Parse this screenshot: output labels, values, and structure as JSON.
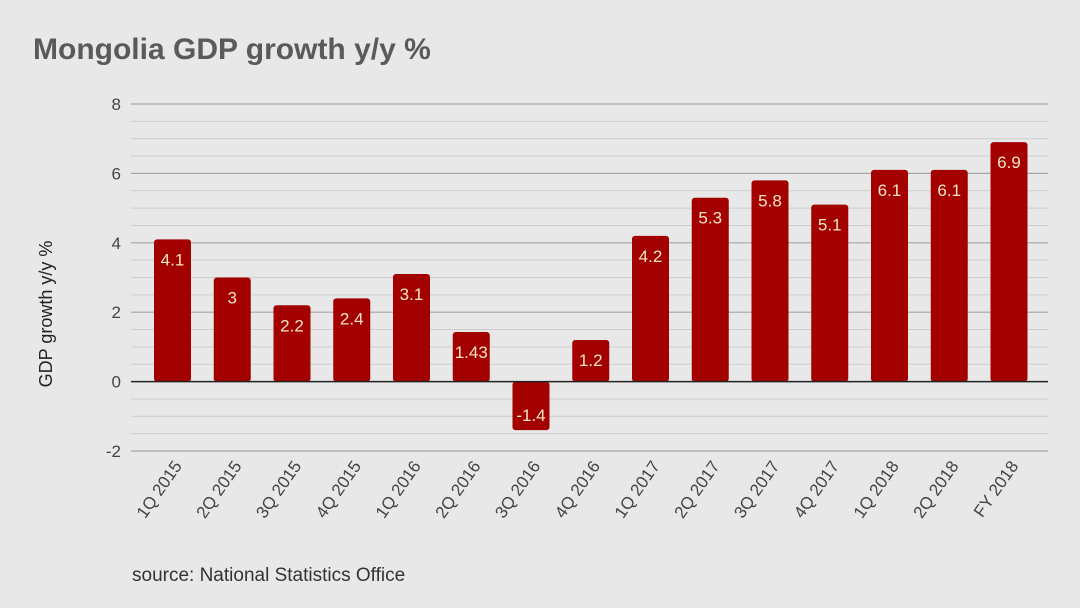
{
  "chart_data": {
    "type": "bar",
    "title": "Mongolia GDP growth y/y %",
    "xlabel": "",
    "ylabel": "GDP growth y/y %",
    "ylim": [
      -2,
      8
    ],
    "yticks": [
      -2,
      0,
      2,
      4,
      6,
      8
    ],
    "ytick_labels": [
      "-2",
      "0",
      "2",
      "4",
      "6",
      "8"
    ],
    "grid": true,
    "categories": [
      "1Q 2015",
      "2Q 2015",
      "3Q 2015",
      "4Q 2015",
      "1Q 2016",
      "2Q 2016",
      "3Q 2016",
      "4Q 2016",
      "1Q 2017",
      "2Q 2017",
      "3Q 2017",
      "4Q 2017",
      "1Q 2018",
      "2Q 2018",
      "FY 2018"
    ],
    "values": [
      4.1,
      3,
      2.2,
      2.4,
      3.1,
      1.43,
      -1.4,
      1.2,
      4.2,
      5.3,
      5.8,
      5.1,
      6.1,
      6.1,
      6.9
    ],
    "data_labels": [
      "4.1",
      "3",
      "2.2",
      "2.4",
      "3.1",
      "1.43",
      "-1.4",
      "1.2",
      "4.2",
      "5.3",
      "5.8",
      "5.1",
      "6.1",
      "6.1",
      "6.9"
    ],
    "source": "source: National Statistics Office"
  },
  "colors": {
    "background": "#e8e8e8",
    "bar": "#a30000",
    "bar_label_inside": "#f3e6c4",
    "bar_label_outside": "#a30000",
    "title": "#5a5a5a",
    "axis_text": "#444444",
    "grid_major": "#a6a6a6",
    "grid_minor": "#cdcdcd",
    "zero_line": "#222222"
  }
}
